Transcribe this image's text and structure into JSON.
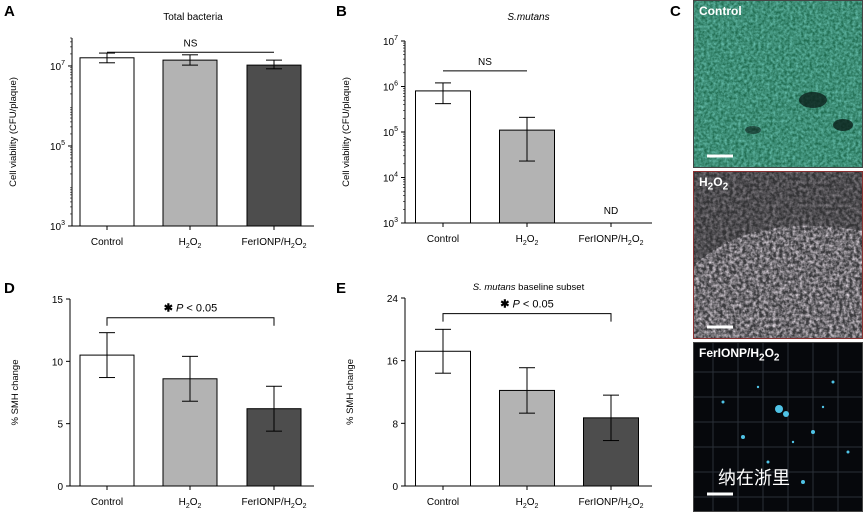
{
  "panel_letters": [
    "A",
    "B",
    "C",
    "D",
    "E"
  ],
  "chart_data": [
    {
      "panel": "A",
      "type": "bar",
      "title": "Total bacteria",
      "title_italic": false,
      "ylabel": "Cell viability (CFU/plaque)",
      "yscale": "log",
      "ylim": [
        1000,
        50000000
      ],
      "yticks": [
        {
          "value": 1000,
          "base": "10",
          "exp": "3"
        },
        {
          "value": 100000,
          "base": "10",
          "exp": "5"
        },
        {
          "value": 10000000,
          "base": "10",
          "exp": "7"
        }
      ],
      "categories": [
        {
          "main": "Control",
          "sub": ""
        },
        {
          "main": "H",
          "sub": "2",
          "mid": "O",
          "sub2": "2"
        },
        {
          "main": "FerIONP/H",
          "sub": "2",
          "mid": "O",
          "sub2": "2"
        }
      ],
      "values": [
        16000000,
        14000000,
        10500000
      ],
      "err_low": [
        12000000,
        10500000,
        8500000
      ],
      "err_high": [
        21000000,
        19000000,
        14000000
      ],
      "colors": [
        "#ffffff",
        "#b3b3b3",
        "#4d4d4d"
      ],
      "annotations": [
        {
          "from": 0,
          "to": 2,
          "level": 22000000,
          "text": "NS",
          "star": false
        }
      ],
      "nd": []
    },
    {
      "panel": "B",
      "type": "bar",
      "title": "S.mutans",
      "title_italic": true,
      "ylabel": "Cell viability (CFU/plaque)",
      "yscale": "log",
      "ylim": [
        1000,
        10000000
      ],
      "yticks": [
        {
          "value": 1000,
          "base": "10",
          "exp": "3"
        },
        {
          "value": 10000,
          "base": "10",
          "exp": "4"
        },
        {
          "value": 100000,
          "base": "10",
          "exp": "5"
        },
        {
          "value": 1000000,
          "base": "10",
          "exp": "6"
        },
        {
          "value": 10000000,
          "base": "10",
          "exp": "7"
        }
      ],
      "categories": [
        {
          "main": "Control",
          "sub": ""
        },
        {
          "main": "H",
          "sub": "2",
          "mid": "O",
          "sub2": "2"
        },
        {
          "main": "FerIONP/H",
          "sub": "2",
          "mid": "O",
          "sub2": "2"
        }
      ],
      "values": [
        800000,
        110000,
        null
      ],
      "err_low": [
        420000,
        23000,
        null
      ],
      "err_high": [
        1200000,
        210000,
        null
      ],
      "colors": [
        "#ffffff",
        "#b3b3b3",
        "#4d4d4d"
      ],
      "annotations": [
        {
          "from": 0,
          "to": 1,
          "level": 2200000,
          "text": "NS",
          "star": false
        }
      ],
      "nd": [
        {
          "index": 2,
          "text": "ND"
        }
      ]
    },
    {
      "panel": "D",
      "type": "bar",
      "title": "",
      "title_italic": false,
      "ylabel": "% SMH change",
      "yscale": "linear",
      "ylim": [
        0,
        15
      ],
      "yticks": [
        {
          "value": 0,
          "label": "0"
        },
        {
          "value": 5,
          "label": "5"
        },
        {
          "value": 10,
          "label": "10"
        },
        {
          "value": 15,
          "label": "15"
        }
      ],
      "categories": [
        {
          "main": "Control",
          "sub": ""
        },
        {
          "main": "H",
          "sub": "2",
          "mid": "O",
          "sub2": "2"
        },
        {
          "main": "FerIONP/H",
          "sub": "2",
          "mid": "O",
          "sub2": "2"
        }
      ],
      "values": [
        10.5,
        8.6,
        6.2
      ],
      "err_low": [
        8.7,
        6.8,
        4.4
      ],
      "err_high": [
        12.3,
        10.4,
        8.0
      ],
      "colors": [
        "#ffffff",
        "#b3b3b3",
        "#4d4d4d"
      ],
      "annotations": [
        {
          "from": 0,
          "to": 2,
          "level": 13.5,
          "text": "P < 0.05",
          "star": true
        }
      ],
      "nd": []
    },
    {
      "panel": "E",
      "type": "bar",
      "title": "S. mutans baseline subset",
      "title_italic_part": "S. mutans",
      "title_rest": " baseline subset",
      "ylabel": "% SMH change",
      "yscale": "linear",
      "ylim": [
        0,
        24
      ],
      "yticks": [
        {
          "value": 0,
          "label": "0"
        },
        {
          "value": 8,
          "label": "8"
        },
        {
          "value": 16,
          "label": "16"
        },
        {
          "value": 24,
          "label": "24"
        }
      ],
      "categories": [
        {
          "main": "Control",
          "sub": ""
        },
        {
          "main": "H",
          "sub": "2",
          "mid": "O",
          "sub2": "2"
        },
        {
          "main": "FerIONP/H",
          "sub": "2",
          "mid": "O",
          "sub2": "2"
        }
      ],
      "values": [
        17.2,
        12.2,
        8.7
      ],
      "err_low": [
        14.4,
        9.3,
        5.8
      ],
      "err_high": [
        20.0,
        15.1,
        11.6
      ],
      "colors": [
        "#ffffff",
        "#b3b3b3",
        "#4d4d4d"
      ],
      "annotations": [
        {
          "from": 0,
          "to": 2,
          "level": 22.0,
          "text": "P < 0.05",
          "star": true
        }
      ],
      "nd": []
    }
  ],
  "micrographs": [
    {
      "label_main": "Control",
      "label_sub": "",
      "tint": "green-cyan"
    },
    {
      "label_main": "H",
      "label_sub": "2",
      "label_mid": "O",
      "label_sub2": "2",
      "tint": "pink-gray"
    },
    {
      "label_main": "FerIONP/H",
      "label_sub": "2",
      "label_mid": "O",
      "label_sub2": "2",
      "tint": "dark-cyan"
    }
  ],
  "watermark": "纳在浙里"
}
